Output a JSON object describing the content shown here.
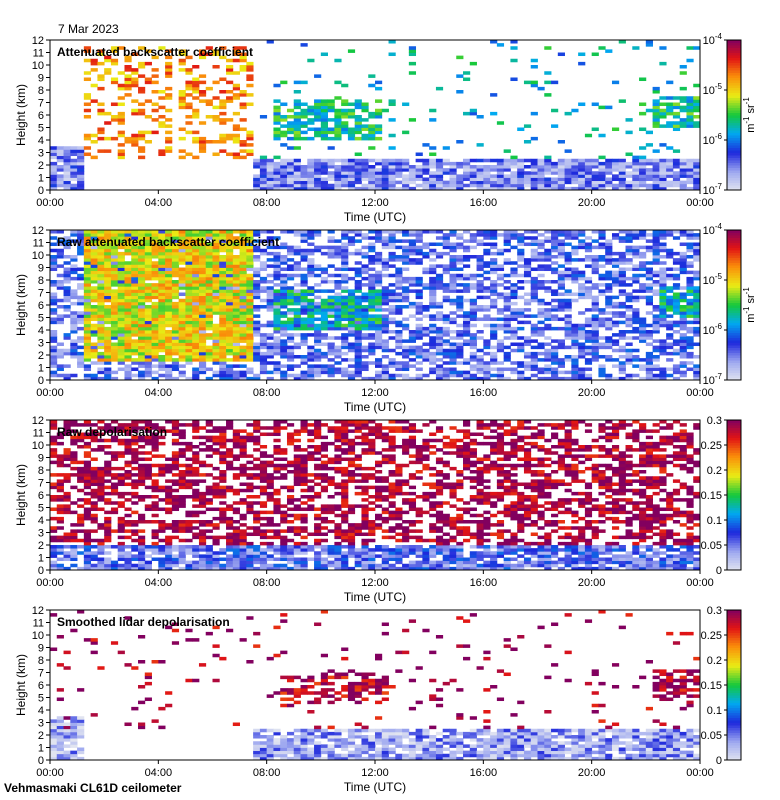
{
  "date_label": "7 Mar 2023",
  "footer": "Vehmasmaki CL61D ceilometer",
  "x_axis": {
    "label": "Time (UTC)",
    "ticks": [
      "00:00",
      "04:00",
      "08:00",
      "12:00",
      "16:00",
      "20:00",
      "00:00"
    ],
    "range_hours": [
      0,
      24
    ]
  },
  "y_axis": {
    "label": "Height (km)",
    "ticks": [
      "0",
      "1",
      "2",
      "3",
      "4",
      "5",
      "6",
      "7",
      "8",
      "9",
      "10",
      "11",
      "12"
    ],
    "range_km": [
      0,
      12
    ]
  },
  "colors": {
    "axis": "#000000",
    "background": "#ffffff"
  },
  "chart_data": [
    {
      "type": "heatmap",
      "title": "Attenuated backscatter coefficient",
      "xlabel": "Time (UTC)",
      "ylabel": "Height (km)",
      "xlim_hours": [
        0,
        24
      ],
      "ylim_km": [
        0,
        12
      ],
      "colorbar": {
        "scale": "log",
        "range": [
          1e-07,
          0.0001
        ],
        "tick_labels": [
          {
            "base": "10",
            "exp": "-7"
          },
          {
            "base": "10",
            "exp": "-6"
          },
          {
            "base": "10",
            "exp": "-5"
          },
          {
            "base": "10",
            "exp": "-4"
          }
        ],
        "unit": {
          "m": "m",
          "m_exp": "-1",
          "sr": "sr",
          "sr_exp": "-1"
        }
      },
      "regions": [
        {
          "t0": 1.3,
          "t1": 4.6,
          "h0": 2.5,
          "h1": 11.5,
          "value": 0.75,
          "density": 0.33,
          "desc": "precipitation"
        },
        {
          "t0": 4.8,
          "t1": 7.6,
          "h0": 2.5,
          "h1": 11.5,
          "value": 0.75,
          "density": 0.33
        },
        {
          "t0": 7.6,
          "t1": 24,
          "h0": 0,
          "h1": 2.5,
          "value": 0.15,
          "density": 0.9
        },
        {
          "t0": 0,
          "t1": 1.3,
          "h0": 0,
          "h1": 3.5,
          "value": 0.15,
          "density": 0.85
        },
        {
          "t0": 8.2,
          "t1": 12.2,
          "h0": 4.0,
          "h1": 7.2,
          "value": 0.45,
          "density": 0.65,
          "desc": "cloud"
        },
        {
          "t0": 22.2,
          "t1": 23.9,
          "h0": 5.0,
          "h1": 7.5,
          "value": 0.45,
          "density": 0.75,
          "desc": "cloud"
        },
        {
          "t0": 7.6,
          "t1": 24,
          "h0": 2.5,
          "h1": 12,
          "value": 0.4,
          "density": 0.06
        }
      ]
    },
    {
      "type": "heatmap",
      "title": "Raw attenuated backscatter coefficient",
      "xlabel": "Time (UTC)",
      "ylabel": "Height (km)",
      "xlim_hours": [
        0,
        24
      ],
      "ylim_km": [
        0,
        12
      ],
      "colorbar": {
        "scale": "log",
        "range": [
          1e-07,
          0.0001
        ],
        "tick_labels": [
          {
            "base": "10",
            "exp": "-7"
          },
          {
            "base": "10",
            "exp": "-6"
          },
          {
            "base": "10",
            "exp": "-5"
          },
          {
            "base": "10",
            "exp": "-4"
          }
        ],
        "unit": {
          "m": "m",
          "m_exp": "-1",
          "sr": "sr",
          "sr_exp": "-1"
        }
      },
      "regions": [
        {
          "t0": 0,
          "t1": 24,
          "h0": 0,
          "h1": 12,
          "value": 0.2,
          "density": 0.6,
          "desc": "noise"
        },
        {
          "t0": 1.3,
          "t1": 7.6,
          "h0": 1.5,
          "h1": 12,
          "value": 0.65,
          "density": 0.9,
          "desc": "precipitation"
        },
        {
          "t0": 8.2,
          "t1": 12.2,
          "h0": 4.0,
          "h1": 7.2,
          "value": 0.42,
          "density": 0.75,
          "desc": "cloud"
        },
        {
          "t0": 22.5,
          "t1": 24,
          "h0": 5.0,
          "h1": 7.5,
          "value": 0.42,
          "density": 0.8,
          "desc": "cloud"
        }
      ]
    },
    {
      "type": "heatmap",
      "title": "Raw depolarisation",
      "xlabel": "Time (UTC)",
      "ylabel": "Height (km)",
      "xlim_hours": [
        0,
        24
      ],
      "ylim_km": [
        0,
        12
      ],
      "colorbar": {
        "scale": "linear",
        "range": [
          0,
          0.3
        ],
        "tick_labels": [
          "0",
          "0.05",
          "0.1",
          "0.15",
          "0.2",
          "0.25",
          "0.3"
        ]
      },
      "regions": [
        {
          "t0": 0,
          "t1": 24,
          "h0": 2,
          "h1": 12,
          "value": 0.97,
          "density": 0.55,
          "desc": "noise"
        },
        {
          "t0": 0,
          "t1": 24,
          "h0": 0,
          "h1": 2,
          "value": 0.2,
          "density": 0.8,
          "desc": "boundary layer"
        }
      ]
    },
    {
      "type": "heatmap",
      "title": "Smoothed lidar depolarisation",
      "xlabel": "Time (UTC)",
      "ylabel": "Height (km)",
      "xlim_hours": [
        0,
        24
      ],
      "ylim_km": [
        0,
        12
      ],
      "colorbar": {
        "scale": "linear",
        "range": [
          0,
          0.3
        ],
        "tick_labels": [
          "0",
          "0.05",
          "0.1",
          "0.15",
          "0.2",
          "0.25",
          "0.3"
        ]
      },
      "regions": [
        {
          "t0": 0,
          "t1": 1.3,
          "h0": 0,
          "h1": 3.5,
          "value": 0.1,
          "density": 0.9
        },
        {
          "t0": 7.6,
          "t1": 24,
          "h0": 0,
          "h1": 2.5,
          "value": 0.12,
          "density": 0.85
        },
        {
          "t0": 8.5,
          "t1": 12.5,
          "h0": 4.5,
          "h1": 7.0,
          "value": 0.95,
          "density": 0.5,
          "desc": "cloud"
        },
        {
          "t0": 22.3,
          "t1": 24,
          "h0": 5.0,
          "h1": 7.2,
          "value": 0.95,
          "density": 0.6,
          "desc": "cloud"
        },
        {
          "t0": 0,
          "t1": 24,
          "h0": 2.5,
          "h1": 12,
          "value": 0.97,
          "density": 0.05,
          "desc": "sparse noise"
        }
      ]
    }
  ]
}
